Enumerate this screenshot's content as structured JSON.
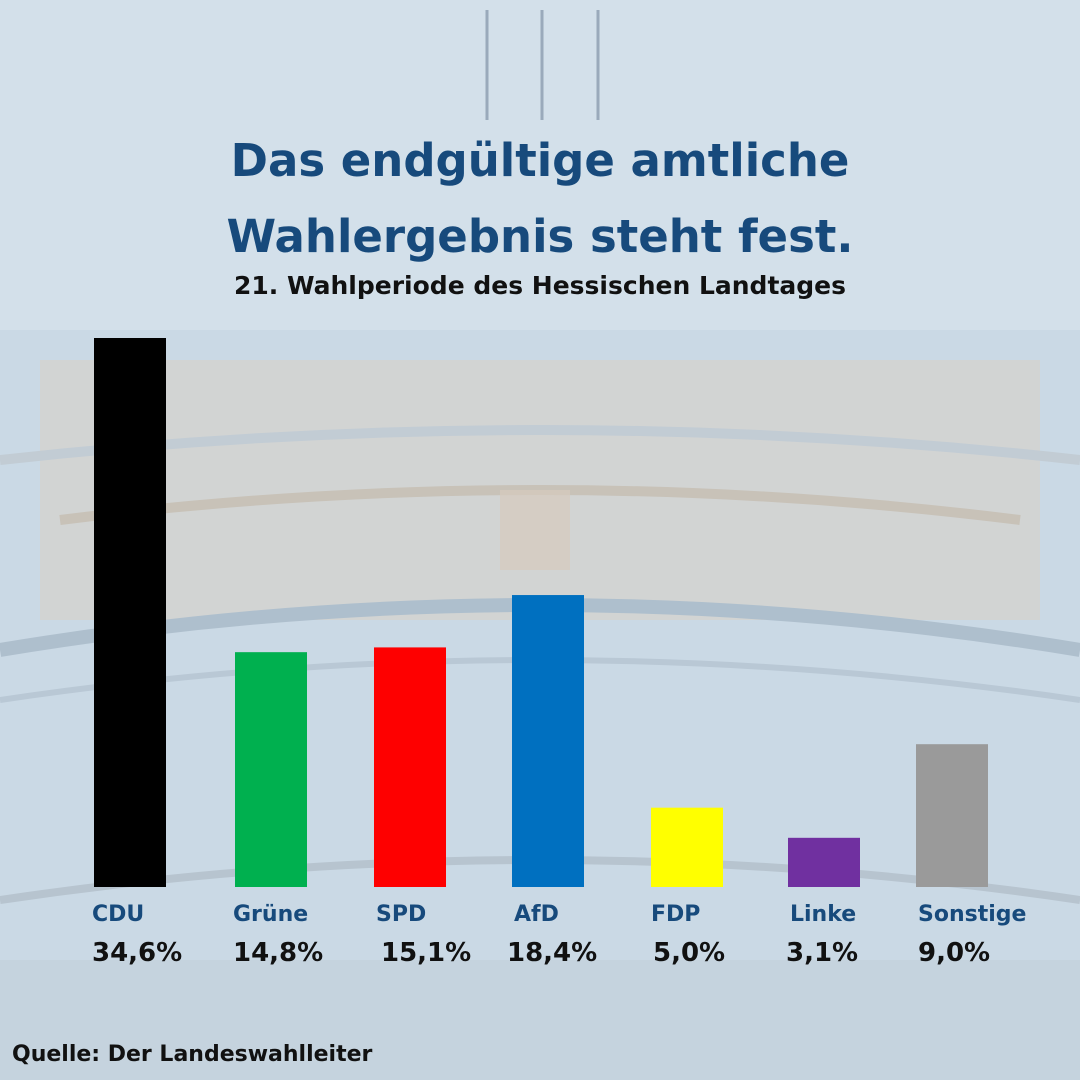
{
  "header": {
    "title_line1": "Das endgültige amtliche",
    "title_line2": "Wahlergebnis steht fest.",
    "subtitle": "21. Wahlperiode des Hessischen Landtages"
  },
  "source": "Quelle: Der Landeswahlleiter",
  "chart_data": {
    "type": "bar",
    "title": "",
    "categories": [
      "CDU",
      "Grüne",
      "SPD",
      "AfD",
      "FDP",
      "Linke",
      "Sonstige"
    ],
    "values": [
      34.6,
      14.8,
      15.1,
      18.4,
      5.0,
      3.1,
      9.0
    ],
    "value_labels": [
      "34,6%",
      "14,8%",
      "15,1%",
      "18,4%",
      "5,0%",
      "3,1%",
      "9,0%"
    ],
    "colors": [
      "#000000",
      "#00b04f",
      "#fe0000",
      "#0070c0",
      "#ffff00",
      "#7030a0",
      "#9a9a9a"
    ],
    "grid": false,
    "legend": "none"
  }
}
